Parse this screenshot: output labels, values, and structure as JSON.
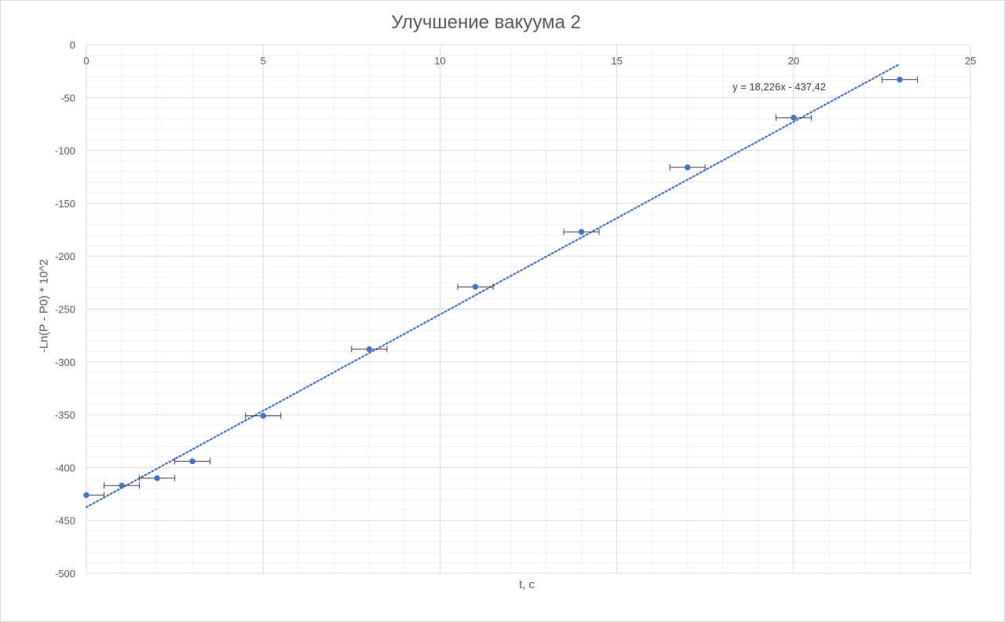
{
  "chart_data": {
    "type": "scatter",
    "title": "Улучшение вакуума 2",
    "xlabel": "t, c",
    "ylabel": "-Ln(P - P0) * 10^2",
    "xlim": [
      0,
      25
    ],
    "ylim": [
      -500,
      0
    ],
    "x_ticks": [
      "0",
      "5",
      "10",
      "15",
      "20",
      "25"
    ],
    "y_ticks": [
      "0",
      "-50",
      "-100",
      "-150",
      "-200",
      "-250",
      "-300",
      "-350",
      "-400",
      "-450",
      "-500"
    ],
    "grid": true,
    "legend": "none",
    "series": [
      {
        "x": [
          0,
          1,
          2,
          3,
          5,
          8,
          11,
          14,
          17,
          20,
          23
        ],
        "y": [
          -426,
          -417,
          -410,
          -394,
          -351,
          -288,
          -229,
          -177,
          -116,
          -69,
          -33
        ],
        "x_error": 0.5,
        "color": "#4472c4"
      }
    ],
    "trendline": {
      "type": "linear",
      "slope": 18.226,
      "intercept": -437.42,
      "x_range": [
        0,
        23
      ],
      "equation": "y = 18,226x - 437,42",
      "color": "#4472c4",
      "style": "dotted"
    }
  }
}
